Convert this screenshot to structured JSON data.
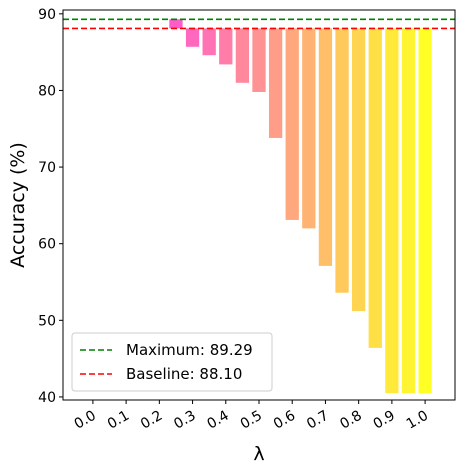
{
  "chart_data": {
    "type": "bar",
    "xlabel": "λ",
    "ylabel": "Accuracy (%)",
    "ylim": [
      39.6,
      90.5
    ],
    "yticks": [
      40,
      50,
      60,
      70,
      80,
      90
    ],
    "tick_labels": [
      "0.0",
      "0.1",
      "0.2",
      "0.3",
      "0.4",
      "0.5",
      "0.6",
      "0.7",
      "0.8",
      "0.9",
      "1.0"
    ],
    "tick_positions": [
      0.0,
      0.1,
      0.2,
      0.3,
      0.4,
      0.5,
      0.6,
      0.7,
      0.8,
      0.9,
      1.0
    ],
    "x": [
      0.0,
      0.05,
      0.1,
      0.15,
      0.2,
      0.25,
      0.3,
      0.35,
      0.4,
      0.45,
      0.5,
      0.55,
      0.6,
      0.65,
      0.7,
      0.75,
      0.8,
      0.85,
      0.9,
      0.95,
      1.0
    ],
    "values": [
      88.1,
      88.1,
      88.1,
      88.1,
      88.1,
      89.29,
      85.7,
      84.6,
      83.4,
      81.0,
      79.8,
      73.8,
      63.1,
      62.0,
      57.1,
      53.6,
      51.2,
      46.4,
      40.5,
      40.5,
      40.5
    ],
    "bar_bottom": 88.1,
    "grid": false,
    "colormap": "spring",
    "reference_lines": [
      {
        "label": "Maximum: 89.29",
        "value": 89.29,
        "color": "#008000",
        "style": "dashed"
      },
      {
        "label": "Baseline: 88.10",
        "value": 88.1,
        "color": "#ff0000",
        "style": "dashed"
      }
    ],
    "legend": {
      "placement": "lower-left"
    }
  }
}
